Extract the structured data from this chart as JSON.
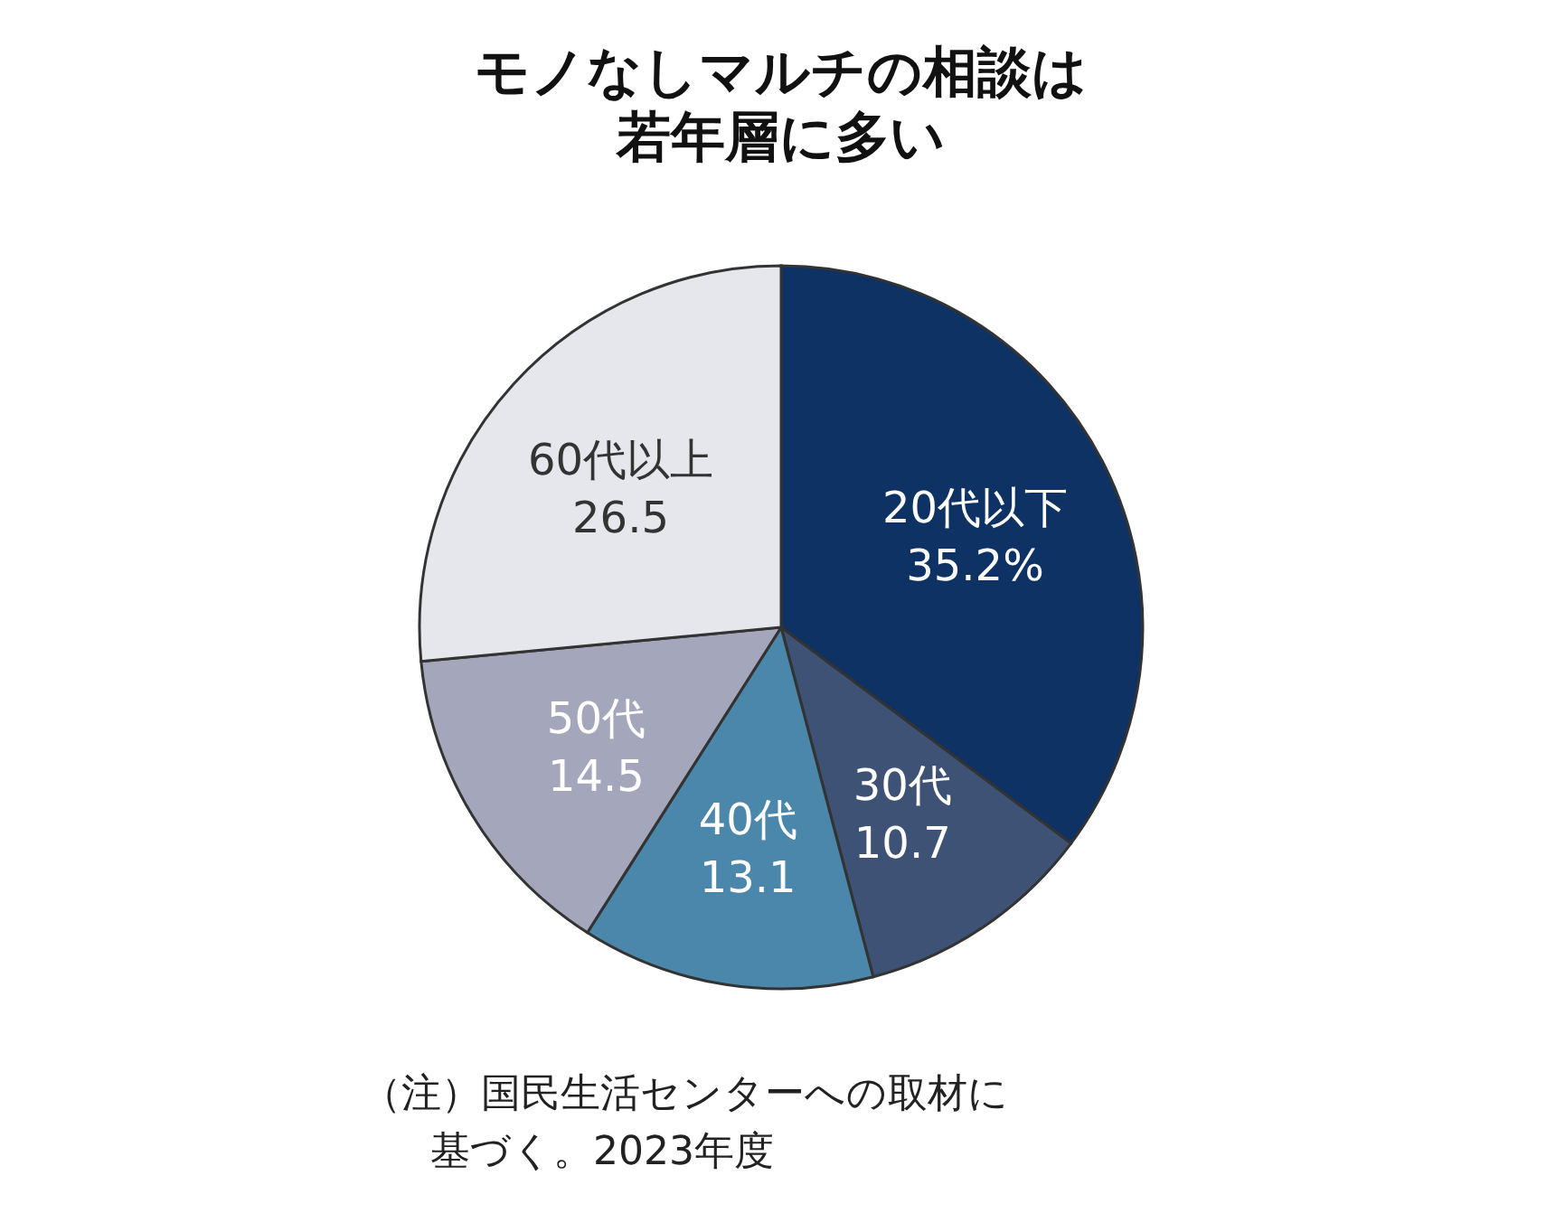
{
  "chart_data": {
    "type": "pie",
    "title": "モノなしマルチの相談は若年層に多い",
    "categories": [
      "20代以下",
      "30代",
      "40代",
      "50代",
      "60代以上"
    ],
    "values": [
      35.2,
      10.7,
      13.1,
      14.5,
      26.5
    ],
    "value_labels": [
      "35.2%",
      "10.7",
      "13.1",
      "14.5",
      "26.5"
    ],
    "colors": [
      "#0d3263",
      "#3d5275",
      "#4a87aa",
      "#a4a6bb",
      "#e6e7ec"
    ],
    "annotations": [
      "（注）国民生活センターへの取材に基づく。2023年度"
    ]
  }
}
